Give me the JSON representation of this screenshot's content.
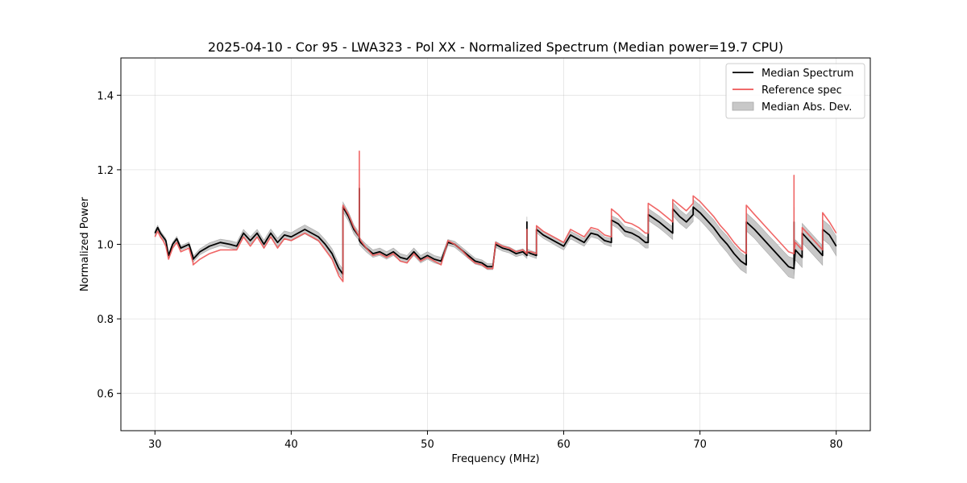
{
  "chart_data": {
    "type": "line",
    "title": "2025-04-10 - Cor 95 - LWA323 - Pol XX - Normalized Spectrum (Median power=19.7 CPU)",
    "xlabel": "Frequency (MHz)",
    "ylabel": "Normalized Power",
    "xlim": [
      27.5,
      82.5
    ],
    "ylim": [
      0.5,
      1.5
    ],
    "xticks": [
      30,
      40,
      50,
      60,
      70,
      80
    ],
    "xtick_labels": [
      "30",
      "40",
      "50",
      "60",
      "70",
      "80"
    ],
    "yticks": [
      0.6,
      0.8,
      1.0,
      1.2,
      1.4
    ],
    "ytick_labels": [
      "0.6",
      "0.8",
      "1.0",
      "1.2",
      "1.4"
    ],
    "grid": true,
    "legend_position": "top-right",
    "legend": [
      "Median Spectrum",
      "Reference spec",
      "Median Abs. Dev."
    ],
    "colors": {
      "median": "#000000",
      "reference": "#ee5555",
      "mad_fill": "#c8c8c8",
      "mad_edge": "#a8a8a8"
    },
    "series": [
      {
        "name": "Median Spectrum",
        "x": [
          30.0,
          30.2,
          30.4,
          30.6,
          30.8,
          31.0,
          31.3,
          31.6,
          31.9,
          32.2,
          32.5,
          32.8,
          32.8,
          33.3,
          34.0,
          34.8,
          35.5,
          36.0,
          36.5,
          37.0,
          37.5,
          38.0,
          38.5,
          39.0,
          39.5,
          40.0,
          40.5,
          41.0,
          41.5,
          42.0,
          42.5,
          43.0,
          43.5,
          43.8,
          43.8,
          44.2,
          44.6,
          45.0,
          45.0,
          45.0,
          45.1,
          45.5,
          46.0,
          46.5,
          47.0,
          47.5,
          48.0,
          48.5,
          49.0,
          49.5,
          50.0,
          50.5,
          51.0,
          51.5,
          52.0,
          52.5,
          53.0,
          53.5,
          54.0,
          54.4,
          54.8,
          55.0,
          55.5,
          56.0,
          56.5,
          57.0,
          57.3,
          57.3,
          57.3,
          57.6,
          58.0,
          58.0,
          58.5,
          59.0,
          59.5,
          60.0,
          60.5,
          61.0,
          61.5,
          62.0,
          62.5,
          63.0,
          63.5,
          63.5,
          64.0,
          64.5,
          65.0,
          65.5,
          66.0,
          66.2,
          66.2,
          67.0,
          67.5,
          68.0,
          68.0,
          68.5,
          69.0,
          69.5,
          69.5,
          70.0,
          70.5,
          71.0,
          71.5,
          72.0,
          72.5,
          73.0,
          73.4,
          73.4,
          74.0,
          74.5,
          75.0,
          75.5,
          76.0,
          76.5,
          76.9,
          76.9,
          76.9,
          77.0,
          77.5,
          77.5,
          78.0,
          78.5,
          79.0,
          79.0,
          79.5,
          80.0
        ],
        "values": [
          1.03,
          1.045,
          1.03,
          1.02,
          1.01,
          0.97,
          1.0,
          1.015,
          0.99,
          0.995,
          1.0,
          0.965,
          0.96,
          0.98,
          0.995,
          1.005,
          1.0,
          0.995,
          1.03,
          1.01,
          1.03,
          1.0,
          1.03,
          1.005,
          1.025,
          1.02,
          1.03,
          1.04,
          1.03,
          1.02,
          1.0,
          0.975,
          0.935,
          0.92,
          1.1,
          1.075,
          1.04,
          1.02,
          1.15,
          1.01,
          1.005,
          0.99,
          0.975,
          0.98,
          0.97,
          0.98,
          0.965,
          0.96,
          0.98,
          0.96,
          0.97,
          0.96,
          0.955,
          1.005,
          1.0,
          0.985,
          0.97,
          0.955,
          0.95,
          0.94,
          0.94,
          1.0,
          0.99,
          0.985,
          0.975,
          0.98,
          0.97,
          1.06,
          0.98,
          0.975,
          0.97,
          1.04,
          1.025,
          1.015,
          1.005,
          0.995,
          1.025,
          1.015,
          1.005,
          1.03,
          1.025,
          1.01,
          1.005,
          1.065,
          1.055,
          1.035,
          1.03,
          1.02,
          1.005,
          1.005,
          1.08,
          1.06,
          1.045,
          1.03,
          1.095,
          1.075,
          1.06,
          1.08,
          1.1,
          1.085,
          1.065,
          1.045,
          1.02,
          1.0,
          0.975,
          0.955,
          0.945,
          1.06,
          1.04,
          1.02,
          1.0,
          0.98,
          0.96,
          0.94,
          0.935,
          1.06,
          0.94,
          0.985,
          0.965,
          1.03,
          1.01,
          0.99,
          0.97,
          1.04,
          1.025,
          0.995
        ]
      },
      {
        "name": "Reference spec",
        "x": [
          30.0,
          30.2,
          30.4,
          30.6,
          30.8,
          31.0,
          31.3,
          31.6,
          31.9,
          32.2,
          32.5,
          32.8,
          32.8,
          33.3,
          34.0,
          34.8,
          35.5,
          36.0,
          36.5,
          37.0,
          37.5,
          38.0,
          38.5,
          39.0,
          39.5,
          40.0,
          40.5,
          41.0,
          41.5,
          42.0,
          42.5,
          43.0,
          43.5,
          43.8,
          43.8,
          44.2,
          44.6,
          45.0,
          45.0,
          45.0,
          45.1,
          45.5,
          46.0,
          46.5,
          47.0,
          47.5,
          48.0,
          48.5,
          49.0,
          49.5,
          50.0,
          50.5,
          51.0,
          51.5,
          52.0,
          52.5,
          53.0,
          53.5,
          54.0,
          54.4,
          54.8,
          55.0,
          55.5,
          56.0,
          56.5,
          57.0,
          57.3,
          57.3,
          57.3,
          57.6,
          58.0,
          58.0,
          58.5,
          59.0,
          59.5,
          60.0,
          60.5,
          61.0,
          61.5,
          62.0,
          62.5,
          63.0,
          63.5,
          63.5,
          64.0,
          64.5,
          65.0,
          65.5,
          66.0,
          66.2,
          66.2,
          67.0,
          67.5,
          68.0,
          68.0,
          68.5,
          69.0,
          69.5,
          69.5,
          70.0,
          70.5,
          71.0,
          71.5,
          72.0,
          72.5,
          73.0,
          73.4,
          73.4,
          74.0,
          74.5,
          75.0,
          75.5,
          76.0,
          76.5,
          76.9,
          76.9,
          76.9,
          77.0,
          77.5,
          77.5,
          78.0,
          78.5,
          79.0,
          79.0,
          79.5,
          80.0
        ],
        "values": [
          1.02,
          1.035,
          1.02,
          1.01,
          0.995,
          0.96,
          0.99,
          1.005,
          0.98,
          0.985,
          0.99,
          0.95,
          0.945,
          0.96,
          0.975,
          0.985,
          0.985,
          0.985,
          1.02,
          0.995,
          1.02,
          0.99,
          1.02,
          0.99,
          1.015,
          1.01,
          1.02,
          1.03,
          1.02,
          1.01,
          0.985,
          0.96,
          0.915,
          0.9,
          1.105,
          1.08,
          1.045,
          1.02,
          1.25,
          1.02,
          1.01,
          0.99,
          0.97,
          0.975,
          0.965,
          0.975,
          0.955,
          0.95,
          0.975,
          0.955,
          0.965,
          0.955,
          0.945,
          1.01,
          1.0,
          0.985,
          0.965,
          0.95,
          0.945,
          0.935,
          0.935,
          1.005,
          0.995,
          0.99,
          0.98,
          0.985,
          0.975,
          1.04,
          0.98,
          0.98,
          0.975,
          1.05,
          1.035,
          1.025,
          1.015,
          1.005,
          1.04,
          1.03,
          1.02,
          1.045,
          1.04,
          1.025,
          1.02,
          1.095,
          1.08,
          1.06,
          1.055,
          1.045,
          1.03,
          1.03,
          1.11,
          1.09,
          1.075,
          1.06,
          1.12,
          1.105,
          1.09,
          1.11,
          1.13,
          1.115,
          1.095,
          1.075,
          1.05,
          1.03,
          1.005,
          0.985,
          0.975,
          1.105,
          1.08,
          1.06,
          1.04,
          1.02,
          1.0,
          0.98,
          0.975,
          1.185,
          0.98,
          1.005,
          0.985,
          1.045,
          1.025,
          1.005,
          0.985,
          1.085,
          1.06,
          1.03
        ]
      },
      {
        "name": "Median Abs. Dev.",
        "x": [
          30.0,
          30.2,
          30.4,
          30.6,
          30.8,
          31.0,
          31.3,
          31.6,
          31.9,
          32.2,
          32.5,
          32.8,
          32.8,
          33.3,
          34.0,
          34.8,
          35.5,
          36.0,
          36.5,
          37.0,
          37.5,
          38.0,
          38.5,
          39.0,
          39.5,
          40.0,
          40.5,
          41.0,
          41.5,
          42.0,
          42.5,
          43.0,
          43.5,
          43.8,
          43.8,
          44.2,
          44.6,
          45.0,
          45.0,
          45.0,
          45.1,
          45.5,
          46.0,
          46.5,
          47.0,
          47.5,
          48.0,
          48.5,
          49.0,
          49.5,
          50.0,
          50.5,
          51.0,
          51.5,
          52.0,
          52.5,
          53.0,
          53.5,
          54.0,
          54.4,
          54.8,
          55.0,
          55.5,
          56.0,
          56.5,
          57.0,
          57.3,
          57.3,
          57.3,
          57.6,
          58.0,
          58.0,
          58.5,
          59.0,
          59.5,
          60.0,
          60.5,
          61.0,
          61.5,
          62.0,
          62.5,
          63.0,
          63.5,
          63.5,
          64.0,
          64.5,
          65.0,
          65.5,
          66.0,
          66.2,
          66.2,
          67.0,
          67.5,
          68.0,
          68.0,
          68.5,
          69.0,
          69.5,
          69.5,
          70.0,
          70.5,
          71.0,
          71.5,
          72.0,
          72.5,
          73.0,
          73.4,
          73.4,
          74.0,
          74.5,
          75.0,
          75.5,
          76.0,
          76.5,
          76.9,
          76.9,
          76.9,
          77.0,
          77.5,
          77.5,
          78.0,
          78.5,
          79.0,
          79.0,
          79.5,
          80.0
        ],
        "half_width": [
          0.006,
          0.006,
          0.006,
          0.006,
          0.006,
          0.006,
          0.006,
          0.006,
          0.006,
          0.006,
          0.006,
          0.008,
          0.008,
          0.008,
          0.009,
          0.009,
          0.01,
          0.01,
          0.01,
          0.01,
          0.01,
          0.011,
          0.011,
          0.011,
          0.011,
          0.011,
          0.012,
          0.012,
          0.012,
          0.012,
          0.012,
          0.013,
          0.013,
          0.013,
          0.013,
          0.012,
          0.012,
          0.011,
          0.011,
          0.011,
          0.01,
          0.01,
          0.01,
          0.01,
          0.01,
          0.01,
          0.01,
          0.01,
          0.01,
          0.01,
          0.01,
          0.01,
          0.01,
          0.008,
          0.008,
          0.008,
          0.008,
          0.008,
          0.008,
          0.008,
          0.008,
          0.008,
          0.008,
          0.008,
          0.008,
          0.008,
          0.008,
          0.014,
          0.008,
          0.008,
          0.008,
          0.009,
          0.009,
          0.009,
          0.01,
          0.01,
          0.01,
          0.01,
          0.01,
          0.01,
          0.01,
          0.01,
          0.011,
          0.012,
          0.013,
          0.013,
          0.014,
          0.014,
          0.015,
          0.015,
          0.016,
          0.016,
          0.016,
          0.017,
          0.018,
          0.018,
          0.018,
          0.019,
          0.02,
          0.02,
          0.02,
          0.021,
          0.021,
          0.022,
          0.022,
          0.023,
          0.023,
          0.024,
          0.024,
          0.025,
          0.025,
          0.026,
          0.026,
          0.027,
          0.027,
          0.04,
          0.027,
          0.027,
          0.027,
          0.026,
          0.026,
          0.026,
          0.026,
          0.026,
          0.026,
          0.026
        ]
      }
    ]
  }
}
